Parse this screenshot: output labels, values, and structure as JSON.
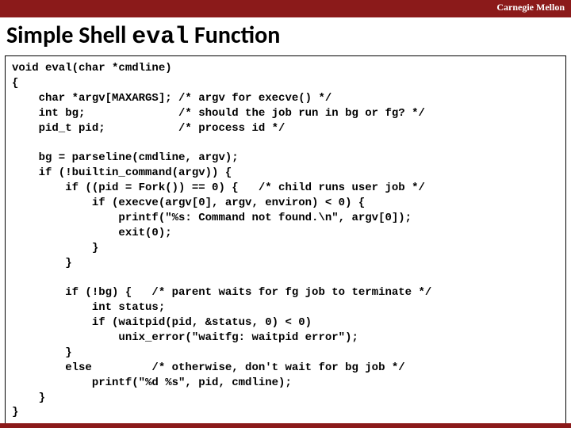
{
  "colors": {
    "accent": "#8b1a1a",
    "background": "#ffffff",
    "text": "#000000",
    "brand_text": "#ffffff"
  },
  "brand": "Carnegie Mellon",
  "title_prefix": "Simple Shell ",
  "title_mono": "eval",
  "title_suffix": " Function",
  "typography": {
    "title_fontsize": 30,
    "code_fontsize": 14,
    "brand_fontsize": 12,
    "code_font": "Courier New",
    "title_font": "Calibri"
  },
  "code": "void eval(char *cmdline)\n{\n    char *argv[MAXARGS]; /* argv for execve() */\n    int bg;              /* should the job run in bg or fg? */\n    pid_t pid;           /* process id */\n\n    bg = parseline(cmdline, argv);\n    if (!builtin_command(argv)) {\n        if ((pid = Fork()) == 0) {   /* child runs user job */\n            if (execve(argv[0], argv, environ) < 0) {\n                printf(\"%s: Command not found.\\n\", argv[0]);\n                exit(0);\n            }\n        }\n\n        if (!bg) {   /* parent waits for fg job to terminate */\n            int status;\n            if (waitpid(pid, &status, 0) < 0)\n                unix_error(\"waitfg: waitpid error\");\n        }\n        else         /* otherwise, don't wait for bg job */\n            printf(\"%d %s\", pid, cmdline);\n    }\n}"
}
